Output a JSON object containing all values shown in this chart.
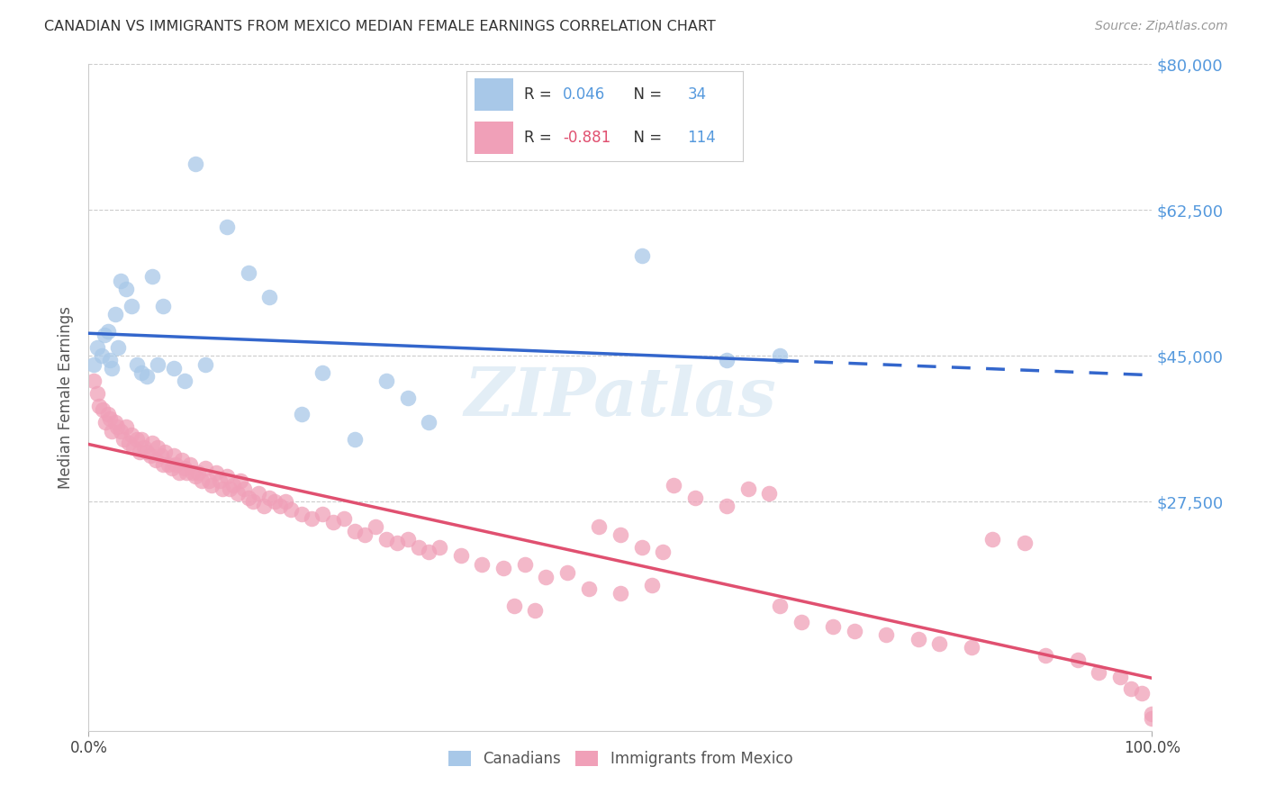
{
  "title": "CANADIAN VS IMMIGRANTS FROM MEXICO MEDIAN FEMALE EARNINGS CORRELATION CHART",
  "source": "Source: ZipAtlas.com",
  "ylabel": "Median Female Earnings",
  "watermark": "ZIPatlas",
  "bg_color": "#ffffff",
  "grid_color": "#cccccc",
  "canadian_color": "#a8c8e8",
  "canadian_line_color": "#3366cc",
  "mexico_color": "#f0a0b8",
  "mexico_line_color": "#e05070",
  "label_color": "#5599dd",
  "title_color": "#333333",
  "ytick_color": "#5599dd",
  "canadian_R": 0.046,
  "canadian_N": 34,
  "mexico_R": -0.881,
  "mexico_N": 114,
  "ymin": 0,
  "ymax": 80000,
  "xmin": 0.0,
  "xmax": 1.0,
  "ytick_vals": [
    27500,
    45000,
    62500,
    80000
  ],
  "ytick_labels": [
    "$27,500",
    "$45,000",
    "$62,500",
    "$80,000"
  ],
  "xtick_labels": [
    "0.0%",
    "100.0%"
  ],
  "canadian_x": [
    0.005,
    0.008,
    0.012,
    0.015,
    0.018,
    0.02,
    0.022,
    0.025,
    0.028,
    0.03,
    0.035,
    0.04,
    0.045,
    0.05,
    0.055,
    0.06,
    0.065,
    0.07,
    0.08,
    0.09,
    0.1,
    0.11,
    0.13,
    0.15,
    0.17,
    0.2,
    0.22,
    0.25,
    0.28,
    0.3,
    0.32,
    0.52,
    0.6,
    0.65
  ],
  "canadian_y": [
    44000,
    46000,
    45000,
    47500,
    48000,
    44500,
    43500,
    50000,
    46000,
    54000,
    53000,
    51000,
    44000,
    43000,
    42500,
    54500,
    44000,
    51000,
    43500,
    42000,
    68000,
    44000,
    60500,
    55000,
    52000,
    38000,
    43000,
    35000,
    42000,
    40000,
    37000,
    57000,
    44500,
    45000
  ],
  "mexico_x": [
    0.005,
    0.008,
    0.01,
    0.013,
    0.016,
    0.018,
    0.02,
    0.022,
    0.025,
    0.027,
    0.03,
    0.033,
    0.035,
    0.038,
    0.04,
    0.042,
    0.045,
    0.048,
    0.05,
    0.052,
    0.055,
    0.058,
    0.06,
    0.063,
    0.065,
    0.068,
    0.07,
    0.072,
    0.075,
    0.078,
    0.08,
    0.082,
    0.085,
    0.088,
    0.09,
    0.092,
    0.095,
    0.098,
    0.1,
    0.103,
    0.106,
    0.11,
    0.113,
    0.116,
    0.12,
    0.123,
    0.126,
    0.13,
    0.133,
    0.136,
    0.14,
    0.143,
    0.146,
    0.15,
    0.155,
    0.16,
    0.165,
    0.17,
    0.175,
    0.18,
    0.185,
    0.19,
    0.2,
    0.21,
    0.22,
    0.23,
    0.24,
    0.25,
    0.26,
    0.27,
    0.28,
    0.29,
    0.3,
    0.31,
    0.32,
    0.33,
    0.35,
    0.37,
    0.39,
    0.41,
    0.43,
    0.45,
    0.47,
    0.5,
    0.53,
    0.55,
    0.57,
    0.6,
    0.62,
    0.64,
    0.4,
    0.42,
    0.65,
    0.67,
    0.7,
    0.72,
    0.75,
    0.78,
    0.8,
    0.83,
    0.85,
    0.88,
    0.9,
    0.93,
    0.95,
    0.97,
    0.98,
    0.99,
    1.0,
    1.0,
    0.48,
    0.5,
    0.52,
    0.54
  ],
  "mexico_y": [
    42000,
    40500,
    39000,
    38500,
    37000,
    38000,
    37500,
    36000,
    37000,
    36500,
    36000,
    35000,
    36500,
    34500,
    35500,
    34000,
    35000,
    33500,
    35000,
    34000,
    33500,
    33000,
    34500,
    32500,
    34000,
    33000,
    32000,
    33500,
    32000,
    31500,
    33000,
    32000,
    31000,
    32500,
    31500,
    31000,
    32000,
    31000,
    30500,
    31000,
    30000,
    31500,
    30000,
    29500,
    31000,
    30000,
    29000,
    30500,
    29000,
    29500,
    28500,
    30000,
    29000,
    28000,
    27500,
    28500,
    27000,
    28000,
    27500,
    27000,
    27500,
    26500,
    26000,
    25500,
    26000,
    25000,
    25500,
    24000,
    23500,
    24500,
    23000,
    22500,
    23000,
    22000,
    21500,
    22000,
    21000,
    20000,
    19500,
    20000,
    18500,
    19000,
    17000,
    16500,
    17500,
    29500,
    28000,
    27000,
    29000,
    28500,
    15000,
    14500,
    15000,
    13000,
    12500,
    12000,
    11500,
    11000,
    10500,
    10000,
    23000,
    22500,
    9000,
    8500,
    7000,
    6500,
    5000,
    4500,
    2000,
    1500,
    24500,
    23500,
    22000,
    21500
  ]
}
